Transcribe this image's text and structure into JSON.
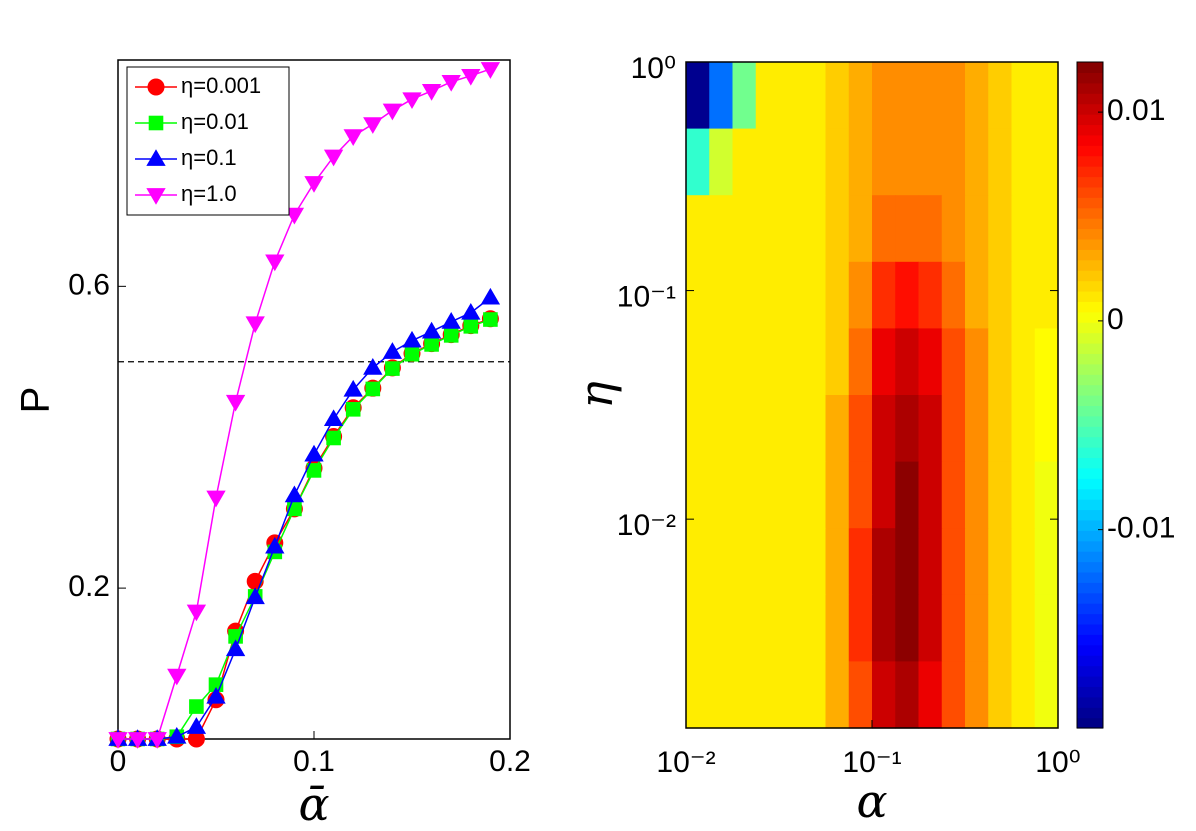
{
  "chart_data": [
    {
      "type": "line",
      "xlabel": "ᾱ",
      "ylabel": "P",
      "x": [
        0,
        0.01,
        0.02,
        0.03,
        0.04,
        0.05,
        0.06,
        0.07,
        0.08,
        0.09,
        0.1,
        0.11,
        0.12,
        0.13,
        0.14,
        0.15,
        0.16,
        0.17,
        0.18,
        0.19
      ],
      "xlim": [
        0,
        0.2
      ],
      "xticks": [
        0,
        0.1,
        0.2
      ],
      "ylim": [
        0,
        0.9
      ],
      "yticks": [
        0.2,
        0.6
      ],
      "hline": 0.5,
      "legend": "upper left",
      "series": [
        {
          "name": "η=0.001",
          "color": "#ff0000",
          "marker": "circle",
          "values": [
            0,
            0,
            0,
            0,
            0,
            0.052,
            0.143,
            0.209,
            0.26,
            0.305,
            0.359,
            0.401,
            0.439,
            0.465,
            0.492,
            0.511,
            0.524,
            0.536,
            0.548,
            0.557
          ]
        },
        {
          "name": "η=0.01",
          "color": "#00ff00",
          "marker": "square",
          "values": [
            0,
            0,
            0,
            0.003,
            0.043,
            0.072,
            0.136,
            0.189,
            0.248,
            0.305,
            0.356,
            0.399,
            0.437,
            0.464,
            0.491,
            0.51,
            0.523,
            0.535,
            0.547,
            0.556
          ]
        },
        {
          "name": "η=0.1",
          "color": "#0000ff",
          "marker": "triangle-up",
          "values": [
            0,
            0,
            0,
            0.003,
            0.016,
            0.056,
            0.119,
            0.188,
            0.255,
            0.323,
            0.377,
            0.424,
            0.463,
            0.492,
            0.513,
            0.528,
            0.54,
            0.553,
            0.565,
            0.585
          ]
        },
        {
          "name": "η=1.0",
          "color": "#ff00ff",
          "marker": "triangle-down",
          "values": [
            0,
            0,
            0,
            0.084,
            0.169,
            0.32,
            0.447,
            0.551,
            0.633,
            0.695,
            0.737,
            0.772,
            0.799,
            0.815,
            0.833,
            0.848,
            0.859,
            0.871,
            0.879,
            0.888
          ]
        }
      ]
    },
    {
      "type": "heatmap",
      "xlabel": "α",
      "ylabel": "η",
      "log_x": true,
      "log_y": true,
      "xlim": [
        0.01,
        1
      ],
      "xticks": [
        {
          "value": 0.01,
          "label": "10⁻²"
        },
        {
          "value": 0.1,
          "label": "10⁻¹"
        },
        {
          "value": 1,
          "label": "10⁰"
        }
      ],
      "ylim": [
        0.00122,
        1
      ],
      "yticks": [
        {
          "value": 0.01,
          "label": "10⁻²"
        },
        {
          "value": 0.1,
          "label": "10⁻¹"
        },
        {
          "value": 1,
          "label": "10⁰"
        }
      ],
      "colormap": "jet",
      "clim": [
        -0.0195,
        0.0124
      ],
      "cticks": [
        -0.01,
        0,
        0.01
      ],
      "z": [
        [
          -0.019,
          -0.012,
          -0.004,
          0.001,
          0.001,
          0.001,
          0.002,
          0.003,
          0.004,
          0.004,
          0.004,
          0.004,
          0.003,
          0.002,
          0.001,
          0.001
        ],
        [
          -0.006,
          -0.001,
          0.001,
          0.001,
          0.001,
          0.001,
          0.002,
          0.003,
          0.004,
          0.004,
          0.004,
          0.004,
          0.003,
          0.002,
          0.001,
          0.001
        ],
        [
          0.001,
          0.001,
          0.001,
          0.001,
          0.001,
          0.001,
          0.002,
          0.003,
          0.005,
          0.005,
          0.005,
          0.004,
          0.003,
          0.002,
          0.001,
          0.001
        ],
        [
          0.001,
          0.001,
          0.001,
          0.001,
          0.001,
          0.001,
          0.002,
          0.004,
          0.007,
          0.008,
          0.007,
          0.005,
          0.003,
          0.002,
          0.001,
          0.001
        ],
        [
          0.001,
          0.001,
          0.001,
          0.001,
          0.001,
          0.001,
          0.002,
          0.005,
          0.009,
          0.01,
          0.009,
          0.006,
          0.004,
          0.002,
          0.001,
          0.0005
        ],
        [
          0.001,
          0.001,
          0.001,
          0.001,
          0.001,
          0.001,
          0.003,
          0.006,
          0.01,
          0.011,
          0.01,
          0.006,
          0.004,
          0.002,
          0.001,
          0.0005
        ],
        [
          0.001,
          0.001,
          0.001,
          0.001,
          0.001,
          0.001,
          0.003,
          0.006,
          0.01,
          0.012,
          0.01,
          0.006,
          0.004,
          0.002,
          0.001,
          0
        ],
        [
          0.001,
          0.001,
          0.001,
          0.001,
          0.001,
          0.001,
          0.003,
          0.007,
          0.011,
          0.012,
          0.01,
          0.006,
          0.004,
          0.002,
          0.001,
          0
        ],
        [
          0.001,
          0.001,
          0.001,
          0.001,
          0.001,
          0.001,
          0.003,
          0.007,
          0.011,
          0.012,
          0.01,
          0.006,
          0.004,
          0.002,
          0.001,
          0
        ],
        [
          0.001,
          0.001,
          0.001,
          0.001,
          0.001,
          0.001,
          0.003,
          0.006,
          0.01,
          0.011,
          0.009,
          0.006,
          0.004,
          0.002,
          0.001,
          0
        ]
      ]
    }
  ]
}
